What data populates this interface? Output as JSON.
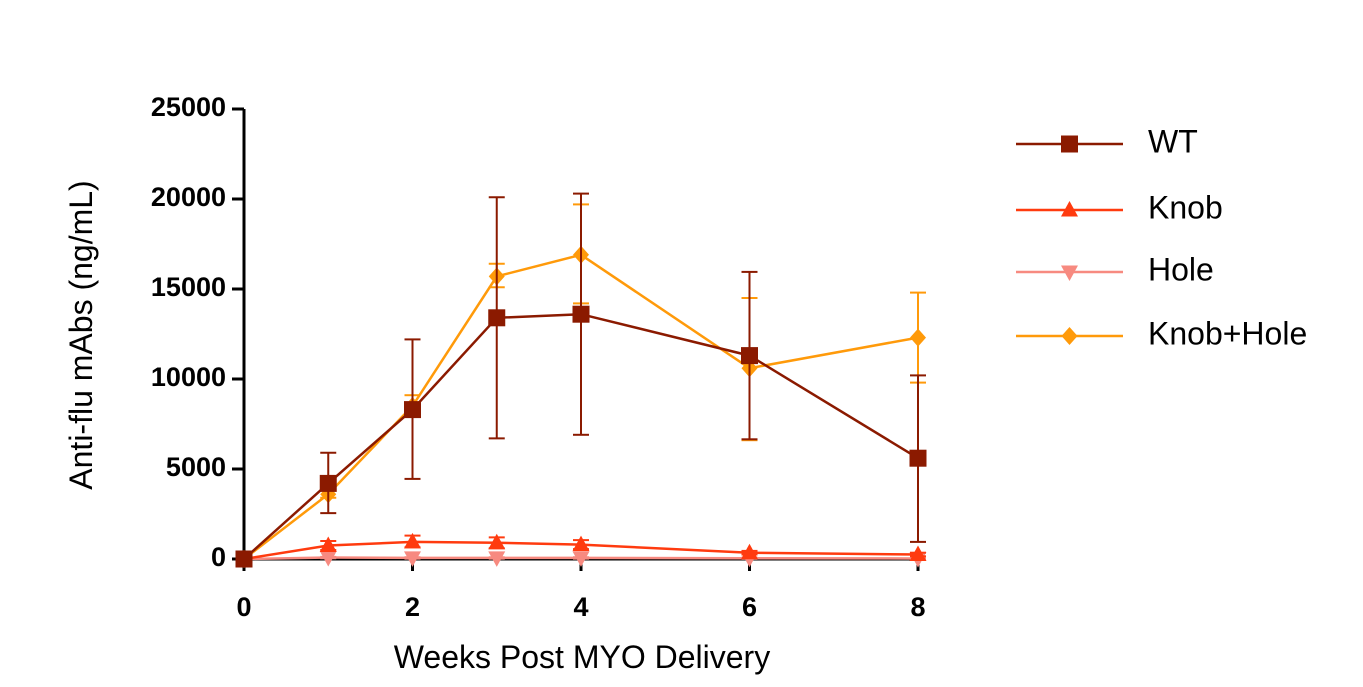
{
  "chart_data": {
    "type": "line",
    "title": "",
    "xlabel": "Weeks Post MYO Delivery",
    "ylabel": "Anti-flu mAbs (ng/mL)",
    "xlim": [
      0,
      8
    ],
    "ylim": [
      0,
      25000
    ],
    "x_ticks": [
      "0",
      "2",
      "4",
      "6",
      "8"
    ],
    "y_ticks": [
      "0",
      "5000",
      "10000",
      "15000",
      "20000",
      "25000"
    ],
    "grid": false,
    "legend_position": "right",
    "series": [
      {
        "name": "WT",
        "color": "#8B1A00",
        "marker": "square",
        "x": [
          0,
          1,
          2,
          3,
          4,
          6,
          8
        ],
        "y": [
          0,
          4200,
          8300,
          13400,
          13600,
          11300,
          5600
        ],
        "err_upper": [
          0,
          5900,
          12200,
          20100,
          20300,
          15950,
          10200
        ],
        "err_lower": [
          0,
          2550,
          4450,
          6700,
          6900,
          6650,
          950
        ]
      },
      {
        "name": "Knob",
        "color": "#FF3B0F",
        "marker": "triangle-up",
        "x": [
          0,
          1,
          2,
          3,
          4,
          6,
          8
        ],
        "y": [
          0,
          750,
          950,
          900,
          800,
          350,
          250
        ],
        "err_upper": [
          0,
          1000,
          1300,
          1200,
          1050,
          450,
          350
        ],
        "err_lower": [
          0,
          500,
          650,
          600,
          550,
          250,
          150
        ]
      },
      {
        "name": "Hole",
        "color": "#F78A80",
        "marker": "triangle-down",
        "x": [
          0,
          1,
          2,
          3,
          4,
          6,
          8
        ],
        "y": [
          0,
          80,
          60,
          60,
          60,
          40,
          30
        ],
        "err_upper": [
          0,
          120,
          100,
          100,
          100,
          80,
          60
        ],
        "err_lower": [
          0,
          40,
          20,
          20,
          20,
          10,
          10
        ]
      },
      {
        "name": "Knob+Hole",
        "color": "#FF9A0A",
        "marker": "diamond",
        "x": [
          0,
          1,
          2,
          3,
          4,
          6,
          8
        ],
        "y": [
          0,
          3600,
          8500,
          15700,
          16900,
          10600,
          12300
        ],
        "err_upper": [
          0,
          3800,
          9100,
          16400,
          19700,
          14500,
          14800
        ],
        "err_lower": [
          0,
          3400,
          7900,
          15100,
          14200,
          6600,
          9800
        ]
      }
    ]
  }
}
